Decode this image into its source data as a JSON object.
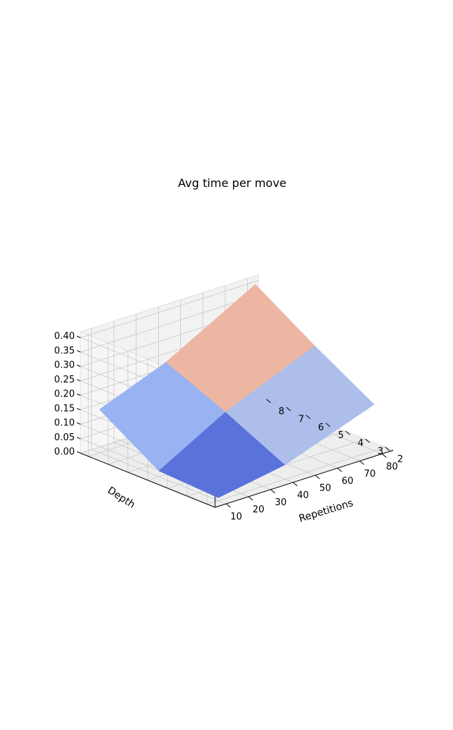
{
  "chart_data": {
    "type": "surface",
    "title": "Avg time per move",
    "xlabel": "Repetitions",
    "ylabel": "Depth",
    "zlabel": "",
    "x": [
      10,
      40,
      80
    ],
    "y": [
      2,
      5,
      8
    ],
    "z": [
      [
        0.01,
        0.05,
        0.16
      ],
      [
        0.02,
        0.15,
        0.28
      ],
      [
        0.15,
        0.24,
        0.41
      ]
    ],
    "x_ticks": [
      "10",
      "20",
      "30",
      "40",
      "50",
      "60",
      "70",
      "80"
    ],
    "y_ticks": [
      "2",
      "3",
      "4",
      "5",
      "6",
      "7",
      "8"
    ],
    "z_ticks": [
      "0.00",
      "0.05",
      "0.10",
      "0.15",
      "0.20",
      "0.25",
      "0.30",
      "0.35",
      "0.40"
    ],
    "xlim": [
      5,
      85
    ],
    "ylim": [
      1.6,
      8.4
    ],
    "zlim": [
      0.0,
      0.42
    ],
    "colormap": "coolwarm",
    "grid": true,
    "pane_color": "#f2f2f2",
    "grid_color": "#c8c8c8",
    "colors": {
      "low": "#3b4cc0",
      "mid": "#dddddd",
      "high": "#b40426"
    }
  }
}
